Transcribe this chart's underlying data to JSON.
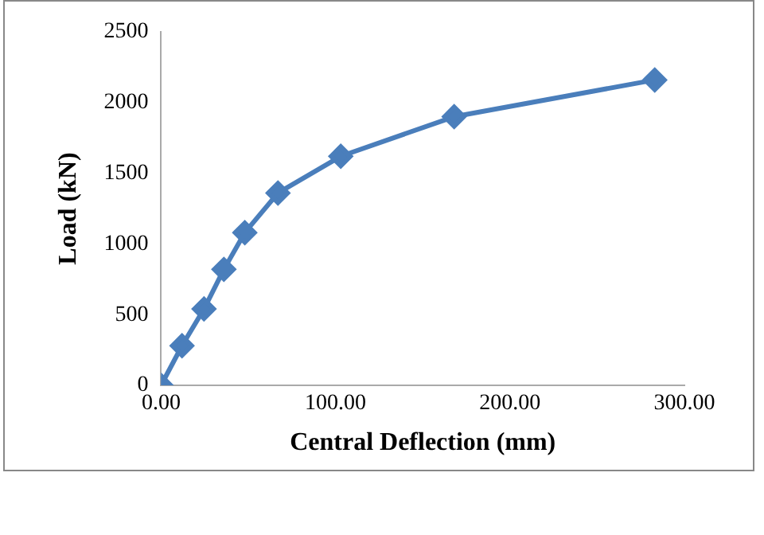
{
  "chart_data": {
    "type": "line",
    "xlabel": "Central Deflection (mm)",
    "ylabel": "Load (kN)",
    "series": [
      {
        "color": "#4a7ebb",
        "x": [
          0,
          12,
          24.6,
          36,
          48,
          67,
          103,
          168,
          283
        ],
        "values": [
          0,
          280,
          540,
          820,
          1080,
          1360,
          1620,
          1900,
          2160
        ]
      }
    ],
    "xlim": [
      0,
      300
    ],
    "xticks": [
      {
        "value": 0,
        "label": "0.00"
      },
      {
        "value": 100,
        "label": "100.00"
      },
      {
        "value": 200,
        "label": "200.00"
      },
      {
        "value": 300,
        "label": "300.00"
      }
    ],
    "ylim": [
      0,
      2500
    ],
    "yticks": [
      0,
      500,
      1000,
      1500,
      2000,
      2500
    ],
    "grid": false,
    "legend": false,
    "marker": "diamond",
    "line_style": "solid"
  }
}
